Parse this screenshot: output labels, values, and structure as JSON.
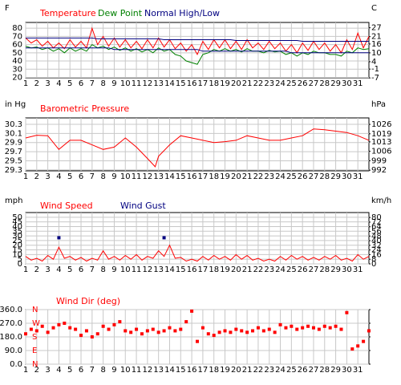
{
  "chart_data": [
    {
      "type": "line",
      "y_label": "F",
      "y2_label": "C",
      "x": [
        1,
        1.5,
        2,
        2.5,
        3,
        3.5,
        4,
        4.5,
        5,
        5.5,
        6,
        6.5,
        7,
        7.5,
        8,
        8.5,
        9,
        9.5,
        10,
        10.5,
        11,
        11.5,
        12,
        12.5,
        13,
        13.5,
        14,
        14.5,
        15,
        15.5,
        16,
        16.5,
        17,
        17.5,
        18,
        18.5,
        19,
        19.5,
        20,
        20.5,
        21,
        21.5,
        22,
        22.5,
        23,
        23.5,
        24,
        24.5,
        25,
        25.5,
        26,
        26.5,
        27,
        27.5,
        28,
        28.5,
        29,
        29.5,
        30,
        30.5,
        31,
        31.5,
        32
      ],
      "xlim": [
        1,
        32
      ],
      "xticks": [
        1,
        2,
        3,
        4,
        5,
        6,
        7,
        8,
        9,
        10,
        11,
        12,
        13,
        14,
        15,
        16,
        17,
        18,
        19,
        20,
        21,
        22,
        23,
        24,
        25,
        26,
        27,
        28,
        29,
        30,
        31
      ],
      "ylim": [
        19.5,
        87
      ],
      "yticks": [
        80,
        70,
        60,
        50,
        40,
        30,
        20
      ],
      "y2lim": [
        -6.9,
        30.6
      ],
      "y2ticks": [
        27,
        21,
        16,
        10,
        4,
        -1,
        -7
      ],
      "grid": true,
      "series": [
        {
          "name": "Temperature",
          "color": "#ff0000",
          "values": [
            68,
            62,
            66,
            58,
            64,
            56,
            62,
            55,
            66,
            57,
            64,
            56,
            80,
            60,
            70,
            58,
            68,
            57,
            66,
            56,
            64,
            55,
            66,
            56,
            68,
            57,
            66,
            55,
            62,
            52,
            60,
            48,
            64,
            54,
            66,
            56,
            66,
            55,
            64,
            54,
            66,
            56,
            62,
            54,
            64,
            55,
            62,
            52,
            60,
            50,
            62,
            53,
            64,
            54,
            62,
            52,
            60,
            50,
            66,
            54,
            74,
            56,
            70
          ]
        },
        {
          "name": "Dew Point",
          "color": "#008000",
          "values": [
            58,
            56,
            57,
            54,
            56,
            52,
            55,
            50,
            56,
            52,
            55,
            52,
            60,
            56,
            58,
            54,
            57,
            53,
            56,
            52,
            55,
            51,
            54,
            50,
            56,
            52,
            54,
            48,
            46,
            40,
            38,
            36,
            48,
            50,
            54,
            52,
            55,
            52,
            54,
            51,
            55,
            52,
            52,
            50,
            53,
            51,
            52,
            48,
            50,
            46,
            50,
            48,
            52,
            50,
            50,
            48,
            48,
            46,
            52,
            50,
            56,
            54,
            55
          ]
        },
        {
          "name": "Normal High/Low",
          "color": "#000080",
          "high": [
            68,
            68,
            68,
            68,
            68,
            68,
            68,
            68,
            68,
            68,
            68,
            68,
            68,
            67,
            67,
            67,
            67,
            67,
            67,
            67,
            67,
            67,
            67,
            67,
            67,
            66,
            66,
            66,
            66,
            66,
            66,
            66,
            66,
            66,
            66,
            66,
            66,
            66,
            65,
            65,
            65,
            65,
            65,
            65,
            65,
            65,
            65,
            65,
            65,
            65,
            64,
            64,
            64,
            64,
            64,
            64,
            64,
            64,
            64,
            64,
            64,
            64,
            64
          ],
          "low": [
            56,
            56,
            56,
            56,
            56,
            56,
            56,
            56,
            56,
            56,
            56,
            56,
            56,
            56,
            56,
            56,
            54,
            54,
            54,
            54,
            54,
            54,
            54,
            54,
            54,
            54,
            54,
            54,
            54,
            54,
            54,
            54,
            52,
            52,
            52,
            52,
            52,
            52,
            52,
            52,
            52,
            52,
            52,
            52,
            52,
            52,
            52,
            52,
            50,
            50,
            50,
            50,
            50,
            50,
            50,
            50,
            50,
            50,
            50,
            50,
            50,
            50,
            50
          ]
        }
      ]
    },
    {
      "type": "line",
      "y_label": "in Hg",
      "y2_label": "hPa",
      "x": [
        1,
        2,
        3,
        4,
        5,
        6,
        7,
        8,
        9,
        10,
        11,
        12,
        12.7,
        13,
        14,
        15,
        16,
        17,
        18,
        19,
        20,
        21,
        22,
        23,
        24,
        25,
        26,
        27,
        28,
        29,
        30,
        31,
        32
      ],
      "xlim": [
        1,
        32
      ],
      "xticks": [
        1,
        2,
        3,
        4,
        5,
        6,
        7,
        8,
        9,
        10,
        11,
        12,
        13,
        14,
        15,
        16,
        17,
        18,
        19,
        20,
        21,
        22,
        23,
        24,
        25,
        26,
        27,
        28,
        29,
        30,
        31
      ],
      "ylim": [
        29.28,
        30.44
      ],
      "yticks": [
        30.3,
        30.1,
        29.9,
        29.7,
        29.5,
        29.3
      ],
      "y2lim": [
        991.5,
        1030.8
      ],
      "y2ticks": [
        1026,
        1019,
        1013,
        1006,
        999,
        992
      ],
      "grid": true,
      "series": [
        {
          "name": "Barometric Pressure",
          "color": "#ff0000",
          "values": [
            30.0,
            30.06,
            30.05,
            29.75,
            29.95,
            29.95,
            29.85,
            29.75,
            29.8,
            30.0,
            29.8,
            29.55,
            29.37,
            29.6,
            29.85,
            30.05,
            30.0,
            29.95,
            29.9,
            29.92,
            29.95,
            30.05,
            30.0,
            29.95,
            29.95,
            30.0,
            30.05,
            30.2,
            30.18,
            30.15,
            30.12,
            30.05,
            29.95
          ]
        }
      ]
    },
    {
      "type": "line",
      "y_label": "mph",
      "y2_label": "km/h",
      "x": [
        1,
        1.5,
        2,
        2.5,
        3,
        3.5,
        4,
        4.5,
        5,
        5.5,
        6,
        6.5,
        7,
        7.5,
        8,
        8.5,
        9,
        9.5,
        10,
        10.5,
        11,
        11.5,
        12,
        12.5,
        13,
        13.5,
        14,
        14.5,
        15,
        15.5,
        16,
        16.5,
        17,
        17.5,
        18,
        18.5,
        19,
        19.5,
        20,
        20.5,
        21,
        21.5,
        22,
        22.5,
        23,
        23.5,
        24,
        24.5,
        25,
        25.5,
        26,
        26.5,
        27,
        27.5,
        28,
        28.5,
        29,
        29.5,
        30,
        30.5,
        31,
        31.5,
        32
      ],
      "xlim": [
        1,
        32
      ],
      "xticks": [
        1,
        2,
        3,
        4,
        5,
        6,
        7,
        8,
        9,
        10,
        11,
        12,
        13,
        14,
        15,
        16,
        17,
        18,
        19,
        20,
        21,
        22,
        23,
        24,
        25,
        26,
        27,
        28,
        29,
        30,
        31
      ],
      "ylim": [
        0,
        55
      ],
      "yticks": [
        50,
        45,
        40,
        35,
        30,
        25,
        20,
        15,
        10,
        5,
        0
      ],
      "y2lim": [
        0,
        88.5
      ],
      "y2ticks": [
        80,
        72,
        64,
        56,
        48,
        40,
        32,
        24,
        16,
        8,
        0
      ],
      "grid": true,
      "series": [
        {
          "name": "Wind Speed",
          "color": "#ff0000",
          "values": [
            8,
            4,
            6,
            3,
            9,
            5,
            18,
            6,
            8,
            4,
            7,
            3,
            6,
            4,
            14,
            5,
            8,
            4,
            9,
            5,
            10,
            4,
            8,
            6,
            14,
            8,
            20,
            6,
            7,
            3,
            5,
            3,
            8,
            4,
            9,
            5,
            8,
            4,
            10,
            5,
            9,
            4,
            6,
            3,
            5,
            3,
            8,
            4,
            9,
            5,
            8,
            4,
            7,
            4,
            8,
            5,
            9,
            4,
            6,
            3,
            10,
            5,
            8
          ]
        },
        {
          "name": "Wind Gust",
          "color": "#000080",
          "mode": "markers",
          "values": [
            null,
            null,
            null,
            null,
            null,
            null,
            28,
            null,
            null,
            null,
            null,
            null,
            null,
            null,
            null,
            null,
            null,
            null,
            null,
            null,
            null,
            null,
            null,
            null,
            null,
            28,
            null,
            null,
            null,
            null,
            null,
            null,
            null,
            null,
            null,
            null,
            null,
            null,
            null,
            null,
            null,
            null,
            null,
            null,
            null,
            null,
            null,
            null,
            null,
            null,
            null,
            null,
            null,
            null,
            null,
            null,
            null,
            null,
            null,
            null,
            null,
            null,
            null
          ]
        }
      ]
    },
    {
      "type": "scatter",
      "x": [
        1,
        1.5,
        2,
        2.5,
        3,
        3.5,
        4,
        4.5,
        5,
        5.5,
        6,
        6.5,
        7,
        7.5,
        8,
        8.5,
        9,
        9.5,
        10,
        10.5,
        11,
        11.5,
        12,
        12.5,
        13,
        13.5,
        14,
        14.5,
        15,
        15.5,
        16,
        16.5,
        17,
        17.5,
        18,
        18.5,
        19,
        19.5,
        20,
        20.5,
        21,
        21.5,
        22,
        22.5,
        23,
        23.5,
        24,
        24.5,
        25,
        25.5,
        26,
        26.5,
        27,
        27.5,
        28,
        28.5,
        29,
        29.5,
        30,
        30.5,
        31,
        31.5,
        32
      ],
      "xlim": [
        1,
        32
      ],
      "xticks": [
        1,
        2,
        3,
        4,
        5,
        6,
        7,
        8,
        9,
        10,
        11,
        12,
        13,
        14,
        15,
        16,
        17,
        18,
        19,
        20,
        21,
        22,
        23,
        24,
        25,
        26,
        27,
        28,
        29,
        30,
        31
      ],
      "ylim": [
        0,
        360
      ],
      "yticks": [
        {
          "value": 360,
          "label": "360.0"
        },
        {
          "value": 270,
          "label": "270.0"
        },
        {
          "value": 180,
          "label": "180.0"
        },
        {
          "value": 90,
          "label": "90.0"
        },
        {
          "value": 0,
          "label": "0.0"
        }
      ],
      "y2lim": [
        0,
        360
      ],
      "y2ticks": [
        {
          "value": 360,
          "label": "N"
        },
        {
          "value": 270,
          "label": "W"
        },
        {
          "value": 180,
          "label": "S"
        },
        {
          "value": 90,
          "label": "E"
        },
        {
          "value": 0,
          "label": "N"
        }
      ],
      "grid": true,
      "series": [
        {
          "name": "Wind Dir (deg)",
          "color": "#ff0000",
          "values": [
            200,
            230,
            220,
            250,
            210,
            240,
            260,
            270,
            240,
            230,
            190,
            220,
            180,
            200,
            250,
            230,
            260,
            280,
            220,
            210,
            230,
            200,
            220,
            230,
            210,
            220,
            240,
            220,
            230,
            280,
            350,
            150,
            240,
            200,
            190,
            210,
            220,
            210,
            230,
            220,
            210,
            220,
            240,
            220,
            230,
            210,
            260,
            240,
            250,
            230,
            240,
            250,
            240,
            230,
            250,
            240,
            250,
            230,
            340,
            100,
            120,
            150,
            220
          ]
        }
      ]
    }
  ]
}
